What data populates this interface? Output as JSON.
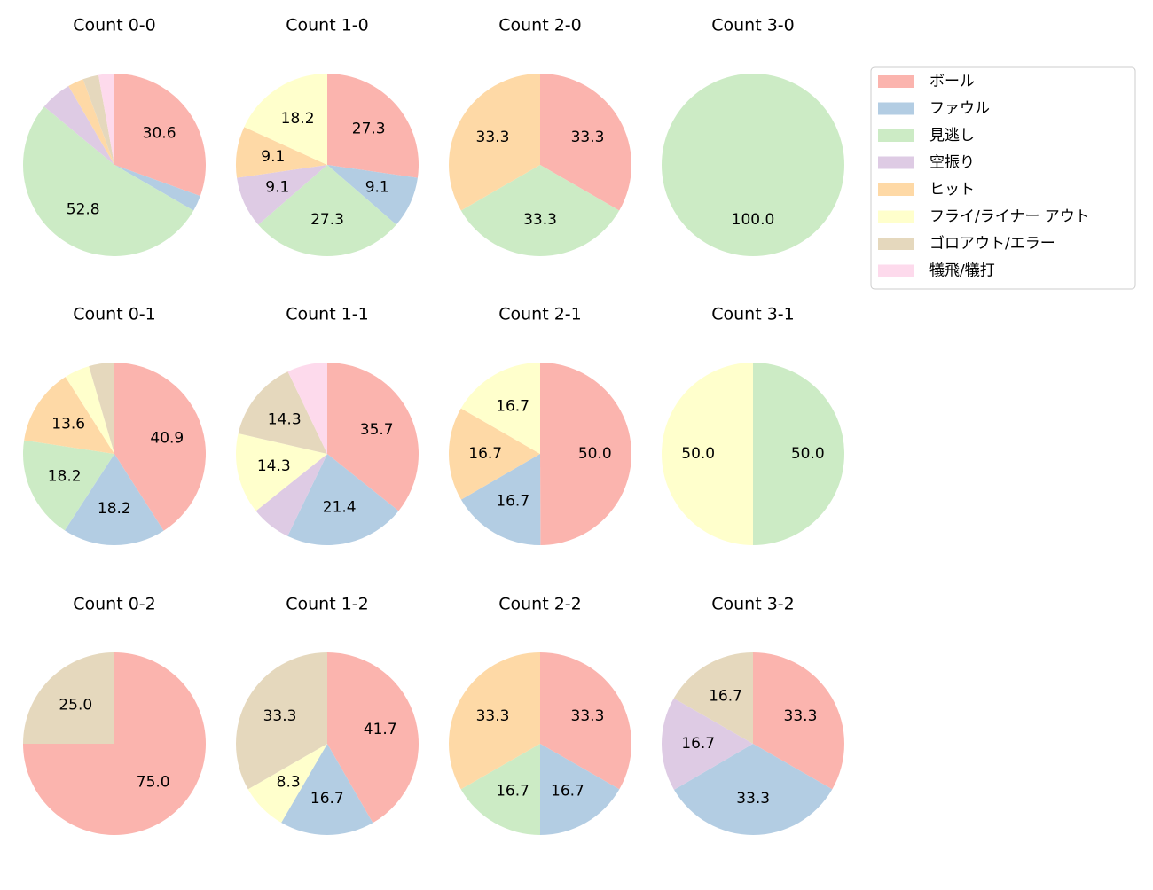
{
  "legend": {
    "names": [
      "ボール",
      "ファウル",
      "見逃し",
      "空振り",
      "ヒット",
      "フライ/ライナー アウト",
      "ゴロアウト/エラー",
      "犠飛/犠打"
    ],
    "colors": [
      "#fbb4ae",
      "#b3cde3",
      "#ccebc5",
      "#decbe4",
      "#fed9a6",
      "#ffffcc",
      "#e5d8bd",
      "#fddaec"
    ]
  },
  "chart_data": [
    {
      "type": "pie",
      "title": "Count 0-0",
      "values": [
        30.6,
        2.8,
        52.8,
        5.6,
        2.8,
        0,
        2.8,
        2.8
      ],
      "value_labels": [
        "30.6",
        null,
        "52.8",
        null,
        null,
        null,
        null,
        null
      ]
    },
    {
      "type": "pie",
      "title": "Count 1-0",
      "values": [
        27.3,
        9.1,
        27.3,
        9.1,
        9.1,
        18.2,
        0,
        0
      ],
      "value_labels": [
        "27.3",
        "9.1",
        "27.3",
        "9.1",
        "9.1",
        "18.2",
        null,
        null
      ]
    },
    {
      "type": "pie",
      "title": "Count 2-0",
      "values": [
        33.3,
        0,
        33.3,
        0,
        33.3,
        0,
        0,
        0
      ],
      "value_labels": [
        "33.3",
        null,
        "33.3",
        null,
        "33.3",
        null,
        null,
        null
      ]
    },
    {
      "type": "pie",
      "title": "Count 3-0",
      "values": [
        0,
        0,
        100,
        0,
        0,
        0,
        0,
        0
      ],
      "value_labels": [
        null,
        null,
        "100.0",
        null,
        null,
        null,
        null,
        null
      ]
    },
    {
      "type": "pie",
      "title": "Count 0-1",
      "values": [
        40.9,
        18.2,
        18.2,
        0,
        13.6,
        4.5,
        4.5,
        0
      ],
      "value_labels": [
        "40.9",
        "18.2",
        "18.2",
        null,
        "13.6",
        null,
        null,
        null
      ]
    },
    {
      "type": "pie",
      "title": "Count 1-1",
      "values": [
        35.7,
        21.4,
        0,
        7.1,
        0,
        14.3,
        14.3,
        7.1
      ],
      "value_labels": [
        "35.7",
        "21.4",
        null,
        null,
        null,
        "14.3",
        "14.3",
        null
      ]
    },
    {
      "type": "pie",
      "title": "Count 2-1",
      "values": [
        50,
        16.7,
        0,
        0,
        16.7,
        16.7,
        0,
        0
      ],
      "value_labels": [
        "50.0",
        "16.7",
        null,
        null,
        "16.7",
        "16.7",
        null,
        null
      ]
    },
    {
      "type": "pie",
      "title": "Count 3-1",
      "values": [
        0,
        0,
        50,
        0,
        0,
        50,
        0,
        0
      ],
      "value_labels": [
        null,
        null,
        "50.0",
        null,
        null,
        "50.0",
        null,
        null
      ]
    },
    {
      "type": "pie",
      "title": "Count 0-2",
      "values": [
        75,
        0,
        0,
        0,
        0,
        0,
        25,
        0
      ],
      "value_labels": [
        "75.0",
        null,
        null,
        null,
        null,
        null,
        "25.0",
        null
      ]
    },
    {
      "type": "pie",
      "title": "Count 1-2",
      "values": [
        41.7,
        16.7,
        0,
        0,
        0,
        8.3,
        33.3,
        0
      ],
      "value_labels": [
        "41.7",
        "16.7",
        null,
        null,
        null,
        "8.3",
        "33.3",
        null
      ]
    },
    {
      "type": "pie",
      "title": "Count 2-2",
      "values": [
        33.3,
        16.7,
        16.7,
        0,
        33.3,
        0,
        0,
        0
      ],
      "value_labels": [
        "33.3",
        "16.7",
        "16.7",
        null,
        "33.3",
        null,
        null,
        null
      ]
    },
    {
      "type": "pie",
      "title": "Count 3-2",
      "values": [
        33.3,
        33.3,
        0,
        16.7,
        0,
        0,
        16.7,
        0
      ],
      "value_labels": [
        "33.3",
        "33.3",
        null,
        "16.7",
        null,
        null,
        "16.7",
        null
      ]
    }
  ]
}
